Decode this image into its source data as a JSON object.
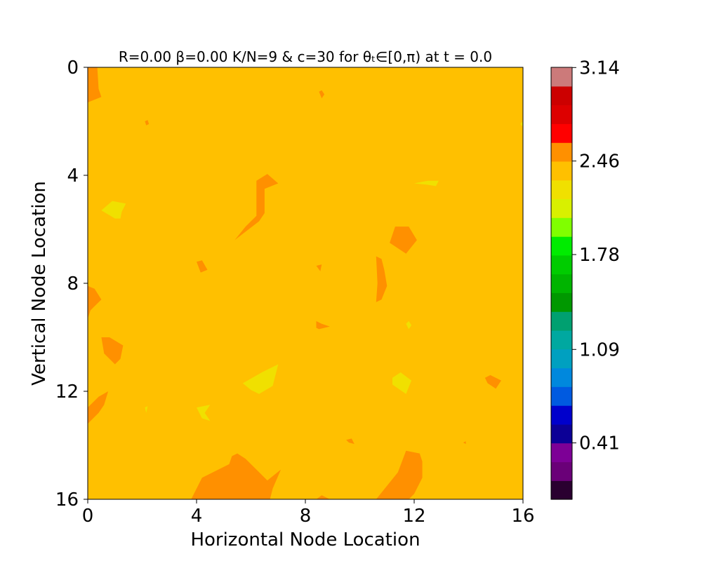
{
  "chart_data": {
    "type": "heatmap",
    "title": "R=0.00 β=0.00 K/N=9 & c=30 for θₜ∈[0,π) at t = 0.0",
    "xlabel": "Horizontal Node Location",
    "ylabel": "Vertical Node Location",
    "xlim": [
      0,
      16
    ],
    "ylim": [
      16,
      0
    ],
    "y_inverted": true,
    "x_ticks": [
      "0",
      "4",
      "8",
      "12",
      "16"
    ],
    "y_ticks": [
      "0",
      "4",
      "8",
      "12",
      "16"
    ],
    "grid": false,
    "background_level_color": "#ffc000",
    "colorbar": {
      "range": [
        0,
        3.14159
      ],
      "tick_labels": [
        "3.14",
        "2.46",
        "1.78",
        "1.09",
        "0.41"
      ],
      "tick_values": [
        3.14,
        2.46,
        1.78,
        1.09,
        0.41
      ],
      "levels": [
        {
          "lo": 0.0,
          "hi": 0.136,
          "color": "#2a0030"
        },
        {
          "lo": 0.136,
          "hi": 0.273,
          "color": "#6a0078"
        },
        {
          "lo": 0.273,
          "hi": 0.41,
          "color": "#7d0096"
        },
        {
          "lo": 0.41,
          "hi": 0.546,
          "color": "#0c0096"
        },
        {
          "lo": 0.546,
          "hi": 0.683,
          "color": "#0000cc"
        },
        {
          "lo": 0.683,
          "hi": 0.82,
          "color": "#005ae0"
        },
        {
          "lo": 0.82,
          "hi": 0.956,
          "color": "#0088dd"
        },
        {
          "lo": 0.956,
          "hi": 1.093,
          "color": "#00a0c0"
        },
        {
          "lo": 1.093,
          "hi": 1.229,
          "color": "#00a8a0"
        },
        {
          "lo": 1.229,
          "hi": 1.366,
          "color": "#00a070"
        },
        {
          "lo": 1.366,
          "hi": 1.503,
          "color": "#009800"
        },
        {
          "lo": 1.503,
          "hi": 1.639,
          "color": "#00b400"
        },
        {
          "lo": 1.639,
          "hi": 1.776,
          "color": "#00cc00"
        },
        {
          "lo": 1.776,
          "hi": 1.912,
          "color": "#00ec00"
        },
        {
          "lo": 1.912,
          "hi": 2.049,
          "color": "#80ff00"
        },
        {
          "lo": 2.049,
          "hi": 2.186,
          "color": "#d8f000"
        },
        {
          "lo": 2.186,
          "hi": 2.322,
          "color": "#f0e000"
        },
        {
          "lo": 2.322,
          "hi": 2.459,
          "color": "#ffc000"
        },
        {
          "lo": 2.459,
          "hi": 2.595,
          "color": "#ff9000"
        },
        {
          "lo": 2.595,
          "hi": 2.732,
          "color": "#ff0000"
        },
        {
          "lo": 2.732,
          "hi": 2.869,
          "color": "#dd0000"
        },
        {
          "lo": 2.869,
          "hi": 3.005,
          "color": "#cc0000"
        },
        {
          "lo": 3.005,
          "hi": 3.142,
          "color": "#cc7a7a"
        }
      ]
    },
    "regions": [
      {
        "color": "#ff9000",
        "points": [
          [
            0,
            0
          ],
          [
            0.35,
            0
          ],
          [
            0.4,
            0.8
          ],
          [
            0.5,
            1.1
          ],
          [
            0,
            1.3
          ]
        ]
      },
      {
        "color": "#ff9000",
        "points": [
          [
            2.1,
            2.0
          ],
          [
            2.2,
            1.95
          ],
          [
            2.25,
            2.1
          ],
          [
            2.15,
            2.15
          ]
        ]
      },
      {
        "color": "#ff9000",
        "points": [
          [
            8.5,
            0.9
          ],
          [
            8.6,
            0.85
          ],
          [
            8.7,
            1.0
          ],
          [
            8.6,
            1.15
          ]
        ]
      },
      {
        "color": "#ff9000",
        "points": [
          [
            6.2,
            4.2
          ],
          [
            6.6,
            3.95
          ],
          [
            7.0,
            4.3
          ],
          [
            6.5,
            4.5
          ],
          [
            6.5,
            5.4
          ],
          [
            6.3,
            5.7
          ],
          [
            5.4,
            6.4
          ],
          [
            5.8,
            5.9
          ],
          [
            6.2,
            5.5
          ],
          [
            6.2,
            4.6
          ]
        ]
      },
      {
        "color": "#ff9000",
        "points": [
          [
            11.3,
            5.9
          ],
          [
            11.8,
            5.9
          ],
          [
            12.1,
            6.4
          ],
          [
            11.7,
            6.9
          ],
          [
            11.1,
            6.5
          ]
        ]
      },
      {
        "color": "#ff9000",
        "points": [
          [
            4.0,
            7.2
          ],
          [
            4.2,
            7.15
          ],
          [
            4.4,
            7.5
          ],
          [
            4.15,
            7.6
          ]
        ]
      },
      {
        "color": "#ff9000",
        "points": [
          [
            8.4,
            7.35
          ],
          [
            8.6,
            7.3
          ],
          [
            8.55,
            7.55
          ]
        ]
      },
      {
        "color": "#ff9000",
        "points": [
          [
            10.6,
            7.0
          ],
          [
            10.8,
            7.1
          ],
          [
            10.9,
            7.5
          ],
          [
            11.0,
            8.1
          ],
          [
            10.8,
            8.6
          ],
          [
            10.6,
            8.7
          ],
          [
            10.65,
            8.0
          ]
        ]
      },
      {
        "color": "#ff9000",
        "points": [
          [
            0,
            8.1
          ],
          [
            0.25,
            8.2
          ],
          [
            0.5,
            8.6
          ],
          [
            0.1,
            9.0
          ],
          [
            0,
            9.3
          ]
        ]
      },
      {
        "color": "#ff9000",
        "points": [
          [
            8.4,
            9.4
          ],
          [
            8.6,
            9.5
          ],
          [
            8.9,
            9.6
          ],
          [
            8.5,
            9.7
          ],
          [
            8.4,
            9.65
          ]
        ]
      },
      {
        "color": "#ff9000",
        "points": [
          [
            0.5,
            10.0
          ],
          [
            0.8,
            10.0
          ],
          [
            1.3,
            10.3
          ],
          [
            1.2,
            10.8
          ],
          [
            1.0,
            11.0
          ],
          [
            0.6,
            10.6
          ]
        ]
      },
      {
        "color": "#ff9000",
        "points": [
          [
            14.6,
            11.5
          ],
          [
            14.8,
            11.4
          ],
          [
            15.2,
            11.6
          ],
          [
            15.0,
            11.9
          ],
          [
            14.7,
            11.7
          ]
        ]
      },
      {
        "color": "#ff9000",
        "points": [
          [
            0,
            12.6
          ],
          [
            0.4,
            12.2
          ],
          [
            0.75,
            12.0
          ],
          [
            0.6,
            12.5
          ],
          [
            0.4,
            12.8
          ],
          [
            0,
            13.2
          ]
        ]
      },
      {
        "color": "#ff9000",
        "points": [
          [
            9.5,
            13.8
          ],
          [
            9.7,
            13.75
          ],
          [
            9.8,
            13.95
          ],
          [
            9.6,
            13.9
          ]
        ]
      },
      {
        "color": "#ff9000",
        "points": [
          [
            13.8,
            13.9
          ],
          [
            13.9,
            13.85
          ],
          [
            13.9,
            13.95
          ]
        ]
      },
      {
        "color": "#ff9000",
        "points": [
          [
            3.8,
            16
          ],
          [
            4.2,
            15.2
          ],
          [
            4.6,
            15.0
          ],
          [
            5.2,
            14.7
          ],
          [
            5.3,
            14.4
          ],
          [
            5.5,
            14.3
          ],
          [
            5.8,
            14.5
          ],
          [
            6.2,
            14.9
          ],
          [
            6.6,
            15.3
          ],
          [
            7.1,
            14.9
          ],
          [
            6.8,
            15.6
          ],
          [
            6.7,
            16
          ]
        ]
      },
      {
        "color": "#ff9000",
        "points": [
          [
            8.4,
            16
          ],
          [
            8.6,
            15.85
          ],
          [
            8.9,
            16
          ]
        ]
      },
      {
        "color": "#ff9000",
        "points": [
          [
            10.6,
            16
          ],
          [
            11.0,
            15.5
          ],
          [
            11.4,
            15.0
          ],
          [
            11.7,
            14.2
          ],
          [
            12.2,
            14.3
          ],
          [
            12.3,
            14.6
          ],
          [
            12.3,
            15.2
          ],
          [
            12.0,
            15.8
          ],
          [
            11.8,
            16
          ]
        ]
      },
      {
        "color": "#f0e000",
        "points": [
          [
            0.5,
            5.3
          ],
          [
            0.9,
            4.95
          ],
          [
            1.4,
            5.05
          ],
          [
            1.25,
            5.35
          ],
          [
            1.2,
            5.6
          ],
          [
            1.0,
            5.6
          ]
        ]
      },
      {
        "color": "#f0e000",
        "points": [
          [
            12.0,
            4.3
          ],
          [
            12.5,
            4.2
          ],
          [
            12.9,
            4.2
          ],
          [
            12.8,
            4.4
          ],
          [
            12.5,
            4.35
          ]
        ]
      },
      {
        "color": "#f0e000",
        "points": [
          [
            11.7,
            9.5
          ],
          [
            11.8,
            9.4
          ],
          [
            11.9,
            9.55
          ],
          [
            11.8,
            9.7
          ]
        ]
      },
      {
        "color": "#f0e000",
        "points": [
          [
            5.7,
            11.7
          ],
          [
            6.4,
            11.3
          ],
          [
            7.0,
            11.0
          ],
          [
            6.8,
            11.8
          ],
          [
            6.3,
            12.1
          ],
          [
            6.0,
            11.95
          ]
        ]
      },
      {
        "color": "#f0e000",
        "points": [
          [
            11.2,
            11.5
          ],
          [
            11.5,
            11.3
          ],
          [
            11.9,
            11.6
          ],
          [
            11.7,
            12.1
          ],
          [
            11.2,
            11.75
          ]
        ]
      },
      {
        "color": "#f0e000",
        "points": [
          [
            4.0,
            12.6
          ],
          [
            4.5,
            12.5
          ],
          [
            4.3,
            12.8
          ],
          [
            4.5,
            13.1
          ],
          [
            4.2,
            13.0
          ]
        ]
      },
      {
        "color": "#f0e000",
        "points": [
          [
            2.1,
            12.6
          ],
          [
            2.2,
            12.55
          ],
          [
            2.15,
            12.8
          ]
        ]
      },
      {
        "color": "#f0e000",
        "points": [
          [
            15.9,
            2.1
          ],
          [
            16,
            2.0
          ],
          [
            16,
            2.2
          ]
        ]
      }
    ]
  }
}
